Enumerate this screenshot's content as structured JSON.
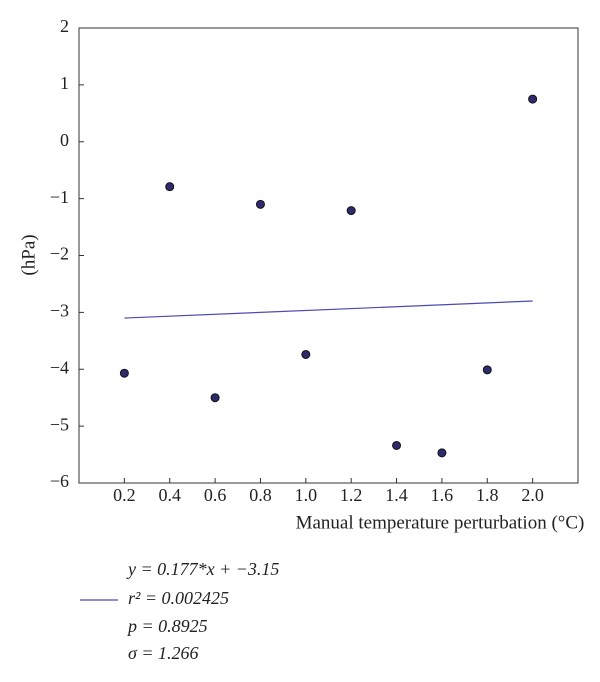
{
  "chart_data": {
    "type": "scatter",
    "xlabel": "Manual temperature perturbation (°C)",
    "ylabel": "(hPa)",
    "x": [
      0.2,
      0.4,
      0.6,
      0.8,
      1.0,
      1.2,
      1.4,
      1.6,
      1.8,
      2.0
    ],
    "values": [
      -4.07,
      -0.79,
      -4.5,
      -1.1,
      -3.74,
      -1.21,
      -5.34,
      -5.47,
      -4.01,
      0.75
    ],
    "color": "#2e2a6e",
    "fit": {
      "x": [
        0.2,
        2.0
      ],
      "values": [
        -3.1,
        -2.8
      ],
      "color": "#4b4bb0"
    },
    "xlim": [
      0,
      2.2
    ],
    "ylim": [
      -6,
      2
    ],
    "xticks": [
      0.2,
      0.4,
      0.6,
      0.8,
      {
        "value": 1.0,
        "label": "1.0"
      },
      1.2,
      1.4,
      1.6,
      1.8,
      {
        "value": 2.0,
        "label": "2.0"
      }
    ],
    "yticks": [
      {
        "value": -6,
        "label": "−6"
      },
      {
        "value": -5,
        "label": "−5"
      },
      {
        "value": -4,
        "label": "−4"
      },
      {
        "value": -3,
        "label": "−3"
      },
      {
        "value": -2,
        "label": "−2"
      },
      {
        "value": -1,
        "label": "−1"
      },
      0,
      1,
      2
    ],
    "legend": [
      "y = 0.177*x + −3.15",
      "r² = 0.002425",
      "p = 0.8925",
      "σ = 1.266"
    ]
  }
}
